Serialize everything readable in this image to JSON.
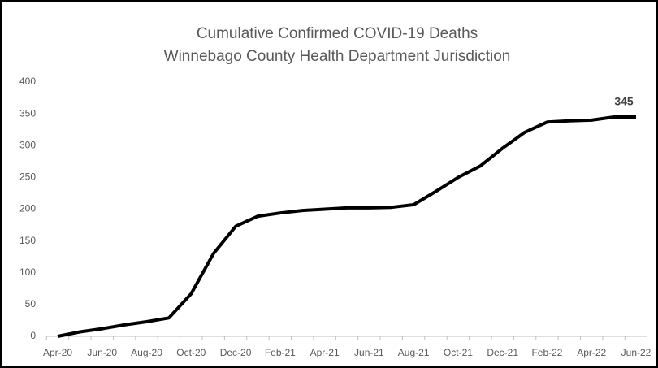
{
  "chart_data": {
    "type": "line",
    "title": "Cumulative Confirmed COVID-19 Deaths",
    "subtitle": "Winnebago County Health Department Jurisdiction",
    "categories": [
      "Apr-20",
      null,
      "Jun-20",
      null,
      "Aug-20",
      null,
      "Oct-20",
      null,
      "Dec-20",
      null,
      "Feb-21",
      null,
      "Apr-21",
      null,
      "Jun-21",
      null,
      "Aug-21",
      null,
      "Oct-21",
      null,
      "Dec-21",
      null,
      "Feb-22",
      null,
      "Apr-22",
      null,
      "Jun-22"
    ],
    "series": [
      {
        "name": "Cumulative Confirmed Deaths",
        "color": "#000000",
        "values": [
          0,
          7,
          12,
          18,
          23,
          29,
          67,
          130,
          173,
          189,
          194,
          198,
          200,
          202,
          202,
          203,
          207,
          228,
          250,
          268,
          296,
          321,
          337,
          339,
          340,
          345,
          345
        ]
      }
    ],
    "ylim": [
      0,
      400
    ],
    "yticks": [
      0,
      50,
      100,
      150,
      200,
      250,
      300,
      350,
      400
    ],
    "grid": false,
    "data_label_index": 26
  }
}
